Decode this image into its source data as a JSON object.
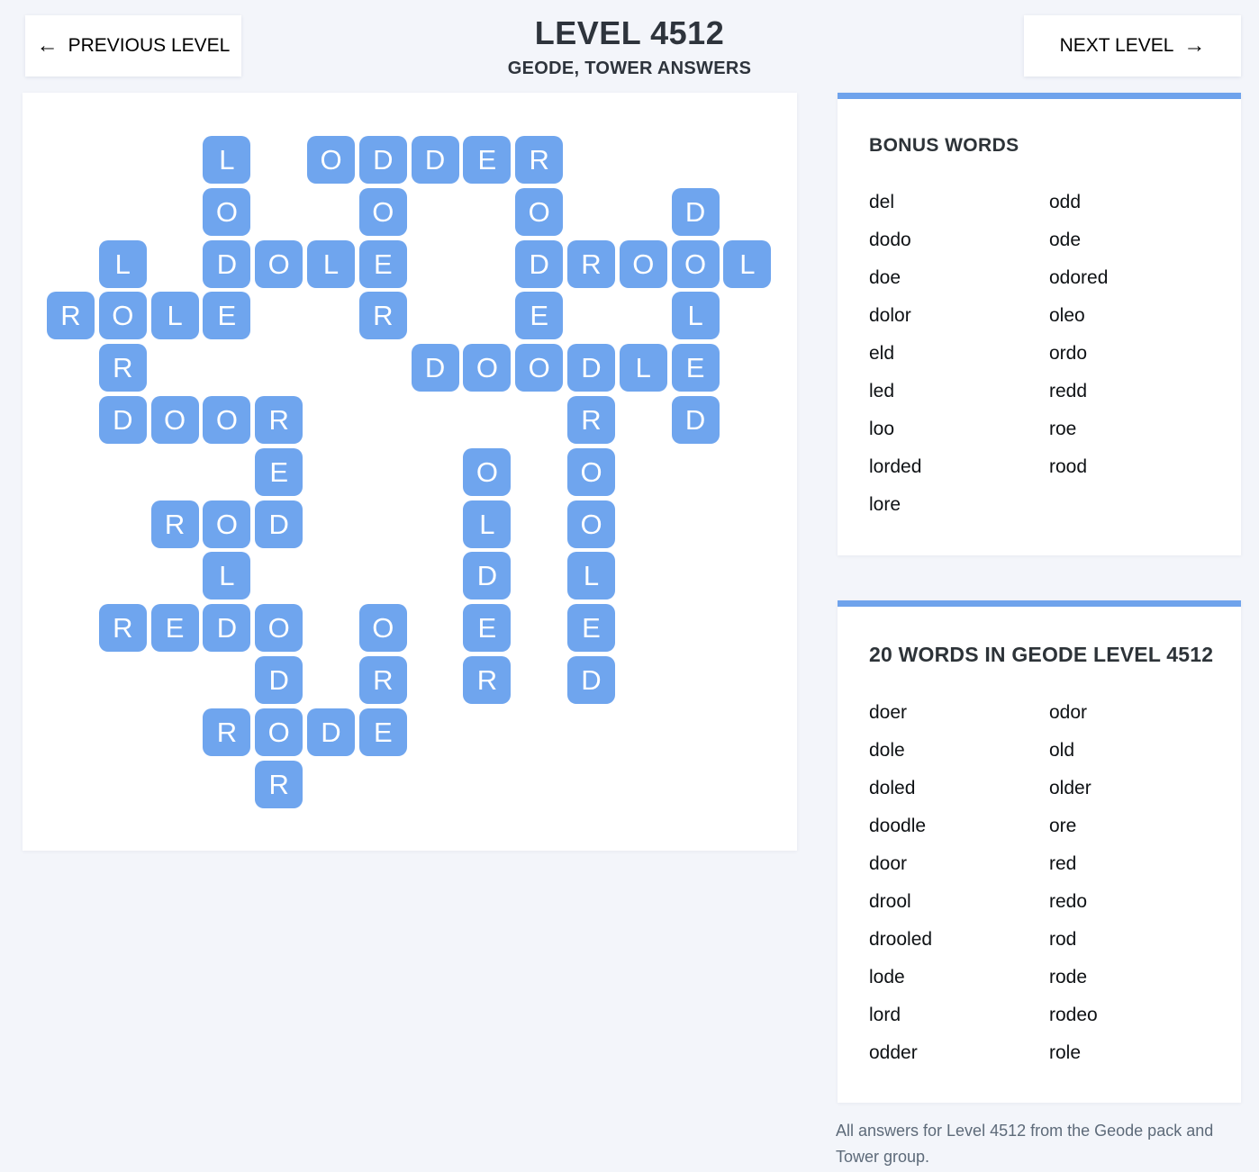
{
  "header": {
    "prev_arrow": "←",
    "prev_label": "PREVIOUS LEVEL",
    "title": "LEVEL 4512",
    "subtitle": "GEODE, TOWER ANSWERS",
    "next_label": "NEXT LEVEL",
    "next_arrow": "→"
  },
  "board": {
    "tiles": [
      [
        0,
        3,
        "L"
      ],
      [
        0,
        5,
        "O"
      ],
      [
        0,
        6,
        "D"
      ],
      [
        0,
        7,
        "D"
      ],
      [
        0,
        8,
        "E"
      ],
      [
        0,
        9,
        "R"
      ],
      [
        1,
        3,
        "O"
      ],
      [
        1,
        6,
        "O"
      ],
      [
        1,
        9,
        "O"
      ],
      [
        1,
        12,
        "D"
      ],
      [
        2,
        1,
        "L"
      ],
      [
        2,
        3,
        "D"
      ],
      [
        2,
        4,
        "O"
      ],
      [
        2,
        5,
        "L"
      ],
      [
        2,
        6,
        "E"
      ],
      [
        2,
        9,
        "D"
      ],
      [
        2,
        10,
        "R"
      ],
      [
        2,
        11,
        "O"
      ],
      [
        2,
        12,
        "O"
      ],
      [
        2,
        13,
        "L"
      ],
      [
        3,
        0,
        "R"
      ],
      [
        3,
        1,
        "O"
      ],
      [
        3,
        2,
        "L"
      ],
      [
        3,
        3,
        "E"
      ],
      [
        3,
        6,
        "R"
      ],
      [
        3,
        9,
        "E"
      ],
      [
        3,
        12,
        "L"
      ],
      [
        4,
        1,
        "R"
      ],
      [
        4,
        7,
        "D"
      ],
      [
        4,
        8,
        "O"
      ],
      [
        4,
        9,
        "O"
      ],
      [
        4,
        10,
        "D"
      ],
      [
        4,
        11,
        "L"
      ],
      [
        4,
        12,
        "E"
      ],
      [
        5,
        1,
        "D"
      ],
      [
        5,
        2,
        "O"
      ],
      [
        5,
        3,
        "O"
      ],
      [
        5,
        4,
        "R"
      ],
      [
        5,
        10,
        "R"
      ],
      [
        5,
        12,
        "D"
      ],
      [
        6,
        4,
        "E"
      ],
      [
        6,
        8,
        "O"
      ],
      [
        6,
        10,
        "O"
      ],
      [
        7,
        2,
        "R"
      ],
      [
        7,
        3,
        "O"
      ],
      [
        7,
        4,
        "D"
      ],
      [
        7,
        8,
        "L"
      ],
      [
        7,
        10,
        "O"
      ],
      [
        8,
        3,
        "L"
      ],
      [
        8,
        8,
        "D"
      ],
      [
        8,
        10,
        "L"
      ],
      [
        9,
        1,
        "R"
      ],
      [
        9,
        2,
        "E"
      ],
      [
        9,
        3,
        "D"
      ],
      [
        9,
        4,
        "O"
      ],
      [
        9,
        6,
        "O"
      ],
      [
        9,
        8,
        "E"
      ],
      [
        9,
        10,
        "E"
      ],
      [
        10,
        4,
        "D"
      ],
      [
        10,
        6,
        "R"
      ],
      [
        10,
        8,
        "R"
      ],
      [
        10,
        10,
        "D"
      ],
      [
        11,
        3,
        "R"
      ],
      [
        11,
        4,
        "O"
      ],
      [
        11,
        5,
        "D"
      ],
      [
        11,
        6,
        "E"
      ],
      [
        12,
        4,
        "R"
      ]
    ]
  },
  "bonus_panel": {
    "title": "BONUS WORDS",
    "col1": [
      "del",
      "dodo",
      "doe",
      "dolor",
      "eld",
      "led",
      "loo",
      "lorded",
      "lore"
    ],
    "col2": [
      "odd",
      "ode",
      "odored",
      "oleo",
      "ordo",
      "redd",
      "roe",
      "rood"
    ]
  },
  "answers_panel": {
    "title": "20 WORDS IN GEODE LEVEL 4512",
    "col1": [
      "doer",
      "dole",
      "doled",
      "doodle",
      "door",
      "drool",
      "drooled",
      "lode",
      "lord",
      "odder"
    ],
    "col2": [
      "odor",
      "old",
      "older",
      "ore",
      "red",
      "redo",
      "rod",
      "rode",
      "rodeo",
      "role"
    ]
  },
  "footer": {
    "text": "All answers for Level 4512 from the Geode pack and Tower group."
  },
  "colors": {
    "tile_blue": "#6FA5EE",
    "accent_bar_blue": "#6FA3EC",
    "page_background": "#F3F5FA"
  }
}
